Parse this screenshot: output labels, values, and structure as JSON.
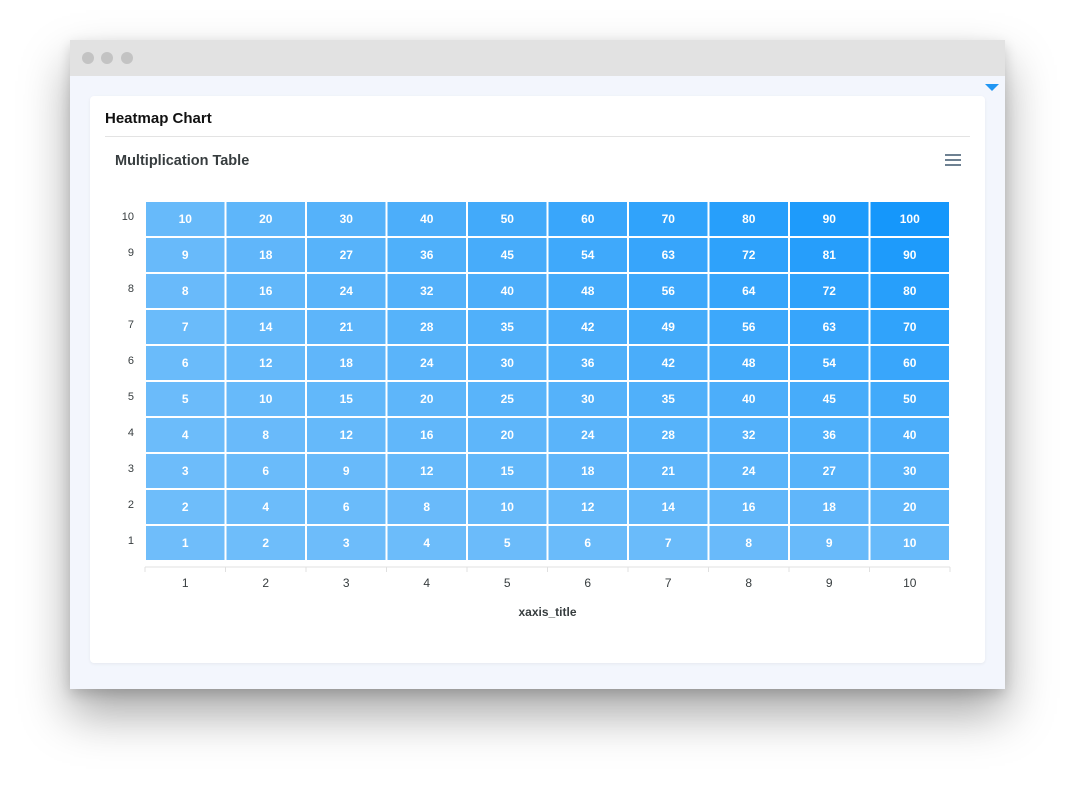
{
  "window": {
    "controls": [
      "close",
      "minimize",
      "maximize"
    ]
  },
  "card": {
    "title": "Heatmap Chart"
  },
  "chart": {
    "title": "Multiplication Table",
    "menu_icon": "hamburger-menu-icon"
  },
  "colors": {
    "accent": "#2196f3",
    "low": "#6fbdfa",
    "high": "#1597fb"
  },
  "chart_data": {
    "type": "heatmap",
    "title": "Multiplication Table",
    "xlabel": "xaxis_title",
    "ylabel": "",
    "x_categories": [
      "1",
      "2",
      "3",
      "4",
      "5",
      "6",
      "7",
      "8",
      "9",
      "10"
    ],
    "series": [
      {
        "name": "10",
        "values": [
          10,
          20,
          30,
          40,
          50,
          60,
          70,
          80,
          90,
          100
        ]
      },
      {
        "name": "9",
        "values": [
          9,
          18,
          27,
          36,
          45,
          54,
          63,
          72,
          81,
          90
        ]
      },
      {
        "name": "8",
        "values": [
          8,
          16,
          24,
          32,
          40,
          48,
          56,
          64,
          72,
          80
        ]
      },
      {
        "name": "7",
        "values": [
          7,
          14,
          21,
          28,
          35,
          42,
          49,
          56,
          63,
          70
        ]
      },
      {
        "name": "6",
        "values": [
          6,
          12,
          18,
          24,
          30,
          36,
          42,
          48,
          54,
          60
        ]
      },
      {
        "name": "5",
        "values": [
          5,
          10,
          15,
          20,
          25,
          30,
          35,
          40,
          45,
          50
        ]
      },
      {
        "name": "4",
        "values": [
          4,
          8,
          12,
          16,
          20,
          24,
          28,
          32,
          36,
          40
        ]
      },
      {
        "name": "3",
        "values": [
          3,
          6,
          9,
          12,
          15,
          18,
          21,
          24,
          27,
          30
        ]
      },
      {
        "name": "2",
        "values": [
          2,
          4,
          6,
          8,
          10,
          12,
          14,
          16,
          18,
          20
        ]
      },
      {
        "name": "1",
        "values": [
          1,
          2,
          3,
          4,
          5,
          6,
          7,
          8,
          9,
          10
        ]
      }
    ],
    "legend": "none",
    "grid": false
  }
}
